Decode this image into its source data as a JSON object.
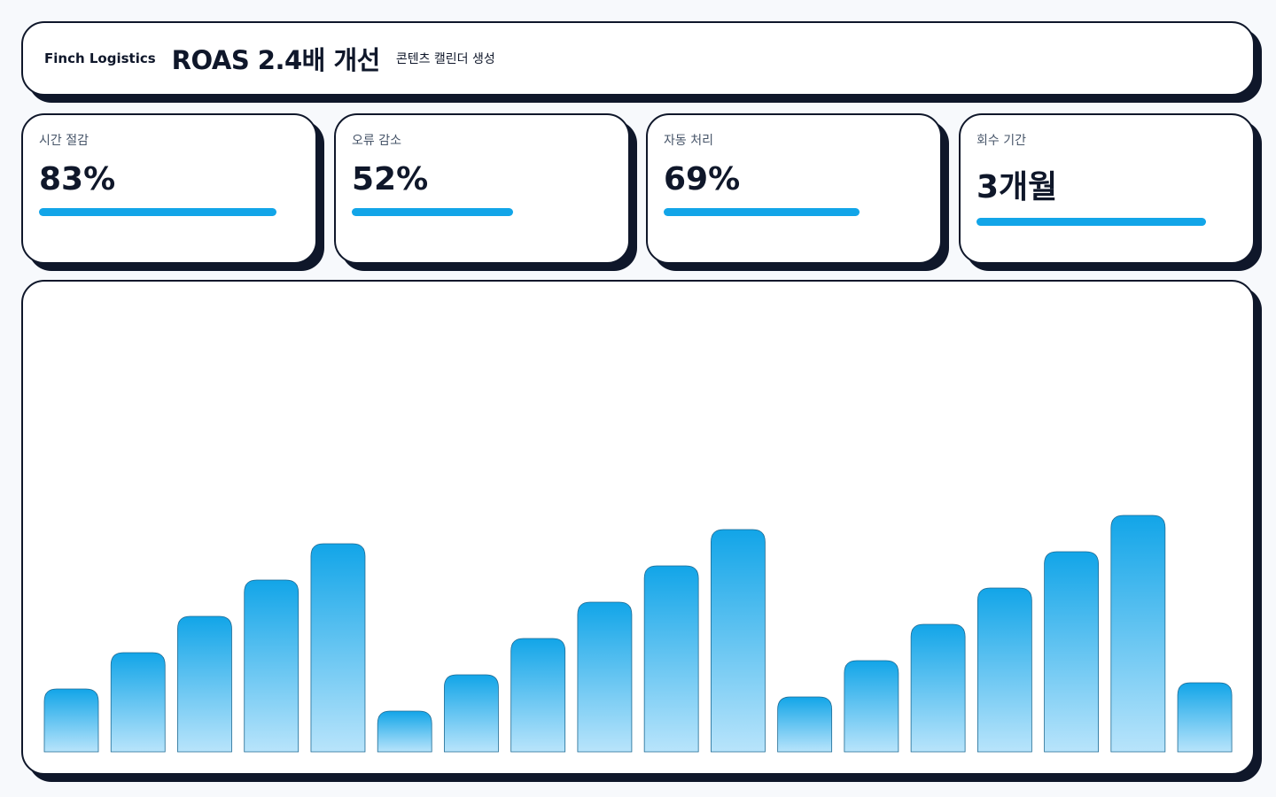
{
  "header": {
    "brand": "Finch Logistics",
    "title": "ROAS 2.4배 개선",
    "subtitle": "콘텐츠 캘린더 생성"
  },
  "kpis": [
    {
      "label": "시간 절감",
      "value": "83%"
    },
    {
      "label": "오류 감소",
      "value": "52%"
    },
    {
      "label": "자동 처리",
      "value": "69%"
    },
    {
      "label": "회수 기간",
      "value": "3개월"
    }
  ],
  "chart_data": {
    "type": "bar",
    "color": "#12a5e8",
    "categories": [
      null,
      null,
      null,
      null,
      null,
      null,
      null,
      null,
      null,
      null,
      null,
      null,
      null,
      null,
      null,
      null,
      null,
      null
    ],
    "values": [
      71,
      112,
      153,
      194,
      235,
      46,
      87,
      128,
      169,
      210,
      251,
      62,
      103,
      144,
      185,
      226,
      267,
      78
    ]
  }
}
